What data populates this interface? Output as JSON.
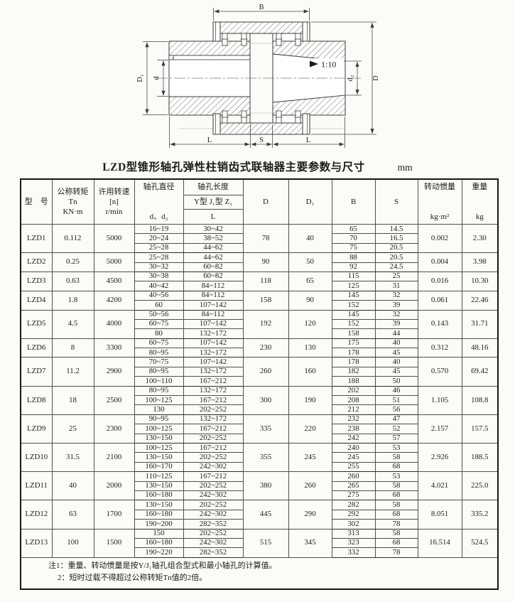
{
  "page": {
    "title": "LZD型锥形轴孔弹性柱销齿式联轴器主要参数与尺寸",
    "unit": "mm"
  },
  "drawing": {
    "dim_b": "B",
    "dim_D": "D",
    "dim_D1": "D₁",
    "dim_d": "d",
    "dim_d2": "d₂",
    "dim_l_left": "L",
    "dim_s": "S",
    "dim_l_right": "L",
    "taper": "1:10"
  },
  "table": {
    "headers": {
      "model": "型　号",
      "torque": [
        "公称转矩",
        "Tn",
        "KN·m"
      ],
      "speed": [
        "许用转速",
        "[n]",
        "r/min"
      ],
      "bore_diameter": [
        "轴孔直径",
        "d、d₂"
      ],
      "bore_length_title": "轴孔长度",
      "bore_length_types": "Y型 J₁型 Z₁",
      "bore_length_sym": "L",
      "D": "D",
      "D1": "D₁",
      "B": "B",
      "S": "S",
      "inertia": [
        "转动惯量",
        "kg·m²"
      ],
      "weight": [
        "重量",
        "kg"
      ]
    },
    "rows": [
      {
        "model": "LZD1",
        "torque": "0.112",
        "speed": "5000",
        "D": "78",
        "D1": "40",
        "inertia": "0.002",
        "weight": "2.30",
        "sub": [
          [
            "16~19",
            "30~42",
            "65",
            "14.5"
          ],
          [
            "20~24",
            "38~52",
            "70",
            "16.5"
          ],
          [
            "25~28",
            "44~62",
            "75",
            "20.5"
          ]
        ]
      },
      {
        "model": "LZD2",
        "torque": "0.25",
        "speed": "5000",
        "D": "90",
        "D1": "50",
        "inertia": "0.004",
        "weight": "3.98",
        "sub": [
          [
            "25~28",
            "44~62",
            "88",
            "20.5"
          ],
          [
            "30~32",
            "60~82",
            "92",
            "24.5"
          ]
        ]
      },
      {
        "model": "LZD3",
        "torque": "0.63",
        "speed": "4500",
        "D": "118",
        "D1": "65",
        "inertia": "0.016",
        "weight": "10.30",
        "sub": [
          [
            "30~38",
            "60~82",
            "115",
            "25"
          ],
          [
            "40~42",
            "84~112",
            "125",
            "31"
          ]
        ]
      },
      {
        "model": "LZD4",
        "torque": "1.8",
        "speed": "4200",
        "D": "158",
        "D1": "90",
        "inertia": "0.061",
        "weight": "22.46",
        "sub": [
          [
            "40~56",
            "84~112",
            "145",
            "32"
          ],
          [
            "60",
            "107~142",
            "152",
            "39"
          ]
        ]
      },
      {
        "model": "LZD5",
        "torque": "4.5",
        "speed": "4000",
        "D": "192",
        "D1": "120",
        "inertia": "0.143",
        "weight": "31.71",
        "sub": [
          [
            "50~56",
            "84~112",
            "145",
            "32"
          ],
          [
            "60~75",
            "107~142",
            "152",
            "39"
          ],
          [
            "80",
            "132~172",
            "158",
            "44"
          ]
        ]
      },
      {
        "model": "LZD6",
        "torque": "8",
        "speed": "3300",
        "D": "230",
        "D1": "130",
        "inertia": "0.312",
        "weight": "48.16",
        "sub": [
          [
            "60~75",
            "107~142",
            "175",
            "40"
          ],
          [
            "80~95",
            "132~172",
            "178",
            "45"
          ]
        ]
      },
      {
        "model": "LZD7",
        "torque": "11.2",
        "speed": "2900",
        "D": "260",
        "D1": "160",
        "inertia": "0.570",
        "weight": "69.42",
        "sub": [
          [
            "70~75",
            "107~142",
            "178",
            "40"
          ],
          [
            "80~95",
            "132~172",
            "182",
            "45"
          ],
          [
            "100~110",
            "167~212",
            "188",
            "50"
          ]
        ]
      },
      {
        "model": "LZD8",
        "torque": "18",
        "speed": "2500",
        "D": "300",
        "D1": "190",
        "inertia": "1.105",
        "weight": "108.8",
        "sub": [
          [
            "80~95",
            "132~172",
            "202",
            "46"
          ],
          [
            "100~125",
            "167~212",
            "208",
            "51"
          ],
          [
            "130",
            "202~252",
            "212",
            "56"
          ]
        ]
      },
      {
        "model": "LZD9",
        "torque": "25",
        "speed": "2300",
        "D": "335",
        "D1": "220",
        "inertia": "2.157",
        "weight": "157.5",
        "sub": [
          [
            "90~95",
            "132~172",
            "232",
            "47"
          ],
          [
            "100~125",
            "167~212",
            "238",
            "52"
          ],
          [
            "130~150",
            "202~252",
            "242",
            "57"
          ]
        ]
      },
      {
        "model": "LZD10",
        "torque": "31.5",
        "speed": "2100",
        "D": "355",
        "D1": "245",
        "inertia": "2.926",
        "weight": "188.5",
        "sub": [
          [
            "100~125",
            "167~212",
            "240",
            "53"
          ],
          [
            "130~150",
            "202~252",
            "245",
            "58"
          ],
          [
            "160~170",
            "242~302",
            "255",
            "68"
          ]
        ]
      },
      {
        "model": "LZD11",
        "torque": "40",
        "speed": "2000",
        "D": "380",
        "D1": "260",
        "inertia": "4.021",
        "weight": "225.0",
        "sub": [
          [
            "110~125",
            "167~212",
            "260",
            "53"
          ],
          [
            "130~150",
            "202~252",
            "265",
            "58"
          ],
          [
            "160~180",
            "242~302",
            "275",
            "68"
          ]
        ]
      },
      {
        "model": "LZD12",
        "torque": "63",
        "speed": "1700",
        "D": "445",
        "D1": "290",
        "inertia": "8.051",
        "weight": "335.2",
        "sub": [
          [
            "130~150",
            "202~252",
            "282",
            "58"
          ],
          [
            "160~180",
            "242~302",
            "292",
            "68"
          ],
          [
            "190~200",
            "282~352",
            "302",
            "78"
          ]
        ]
      },
      {
        "model": "LZD13",
        "torque": "100",
        "speed": "1500",
        "D": "515",
        "D1": "345",
        "inertia": "16.514",
        "weight": "524.5",
        "sub": [
          [
            "150",
            "202~252",
            "313",
            "58"
          ],
          [
            "160~180",
            "242~302",
            "323",
            "68"
          ],
          [
            "190~220",
            "282~352",
            "332",
            "78"
          ]
        ]
      }
    ],
    "notes": [
      "注1：重量、转动惯量是按Y/J₁轴孔组合型式和最小轴孔的计算值。",
      "2：短时过载不得超过公称转矩Tn值的2倍。"
    ]
  }
}
